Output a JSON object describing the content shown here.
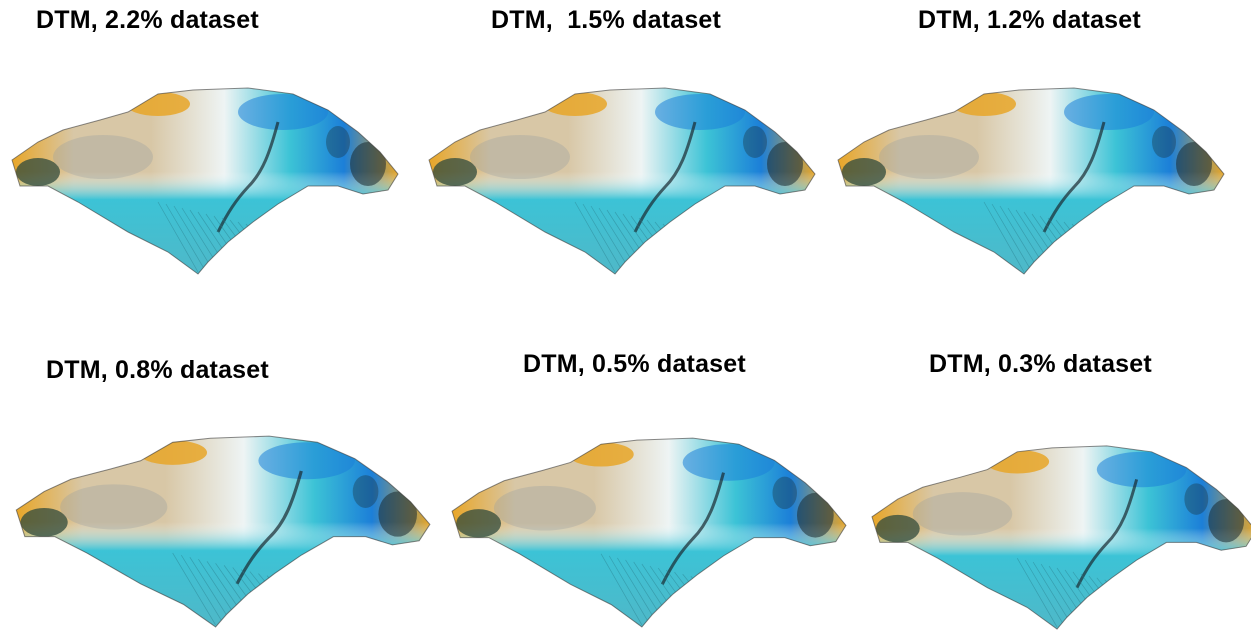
{
  "figure": {
    "panels": [
      {
        "id": "p1",
        "title": "DTM, 2.2% dataset"
      },
      {
        "id": "p2",
        "title": "DTM,  1.5% dataset"
      },
      {
        "id": "p3",
        "title": "DTM, 1.2% dataset"
      },
      {
        "id": "p4",
        "title": "DTM, 0.8% dataset"
      },
      {
        "id": "p5",
        "title": "DTM, 0.5% dataset"
      },
      {
        "id": "p6",
        "title": "DTM, 0.3% dataset"
      }
    ],
    "colors": {
      "orange": "#e8a628",
      "sand": "#d8c7a6",
      "white": "#eef4f4",
      "cyan": "#3cc3d6",
      "blue": "#1c7fd8",
      "dark": "#1a2a30"
    }
  }
}
